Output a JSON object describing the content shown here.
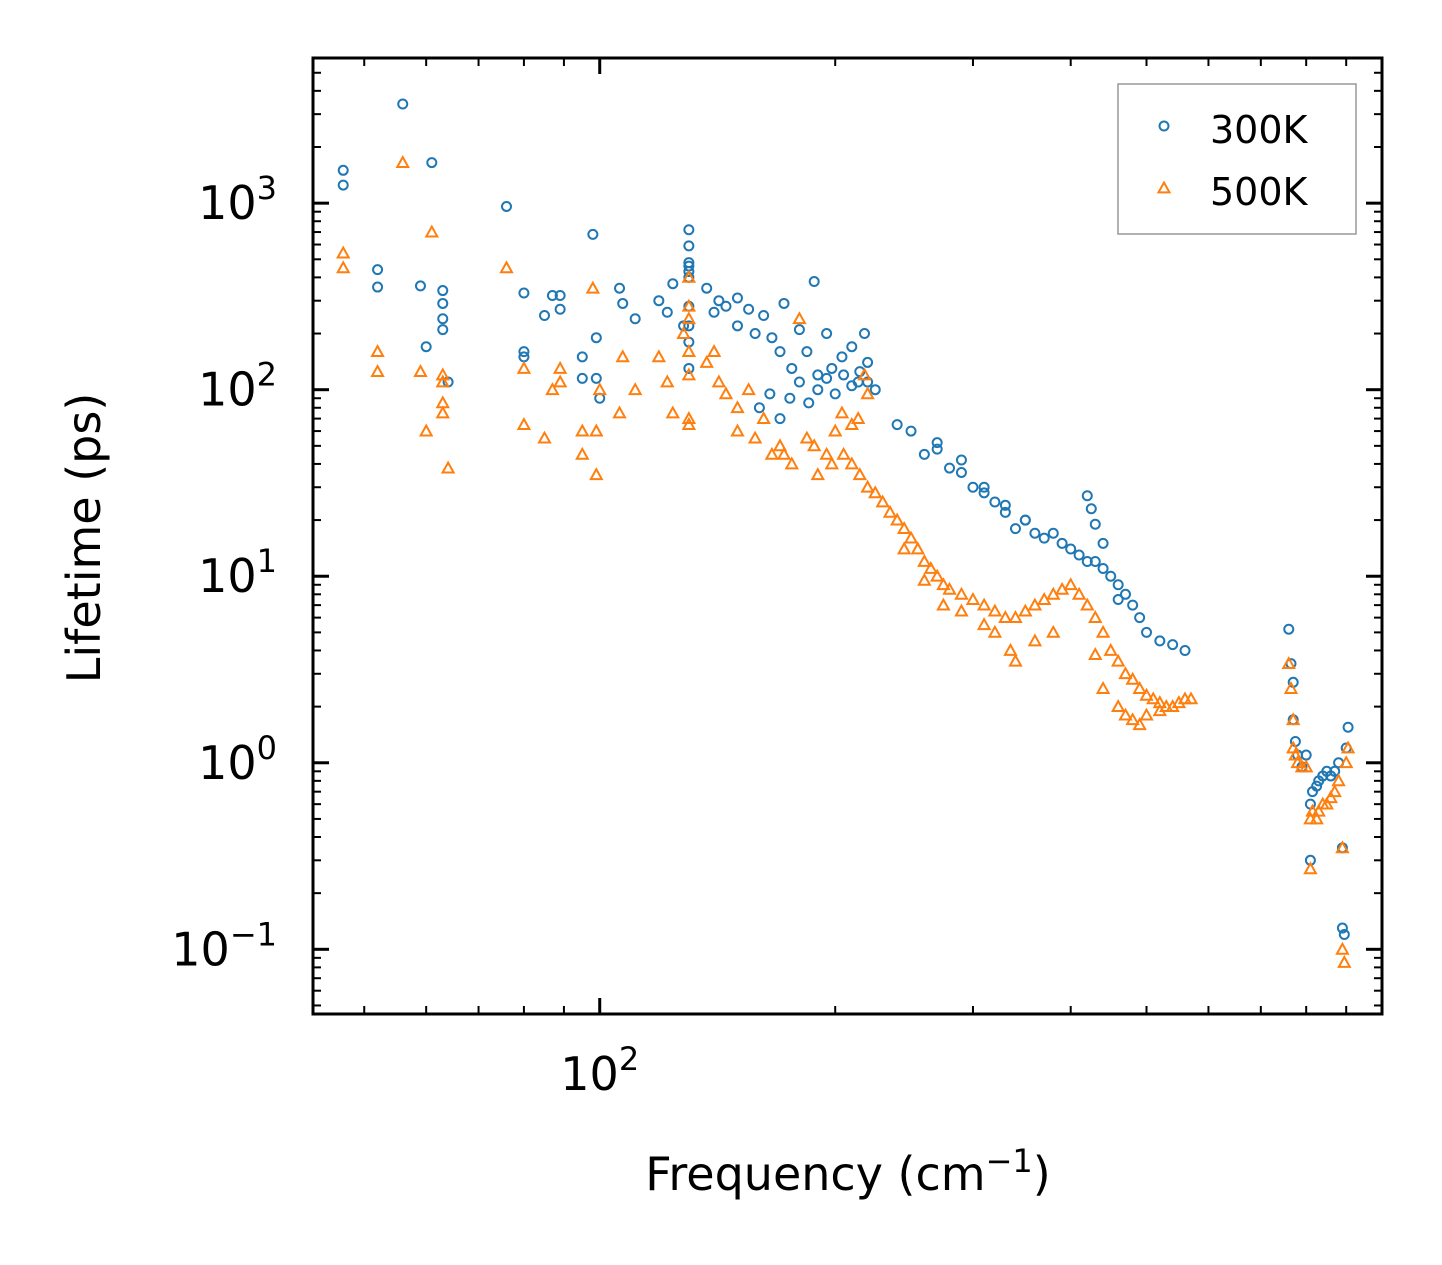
{
  "chart_data": {
    "type": "scatter",
    "xscale": "log",
    "yscale": "log",
    "xlim": [
      43,
      1000
    ],
    "ylim": [
      0.045,
      6000
    ],
    "xlabel": "Frequency (cm",
    "xlabel_exp": "−1",
    "xlabel_end": ")",
    "ylabel": "Lifetime (ps)",
    "x_ticks": [
      {
        "base": "10",
        "exp": "2",
        "value": 100
      }
    ],
    "y_ticks": [
      {
        "base": "10",
        "exp": "−1",
        "value": 0.1
      },
      {
        "base": "10",
        "exp": "0",
        "value": 1
      },
      {
        "base": "10",
        "exp": "1",
        "value": 10
      },
      {
        "base": "10",
        "exp": "2",
        "value": 100
      },
      {
        "base": "10",
        "exp": "3",
        "value": 1000
      }
    ],
    "legend": {
      "position": "top-right"
    },
    "series": [
      {
        "name": "300K",
        "marker": "circle",
        "color": "#1f77b4",
        "points": [
          [
            47,
            1500
          ],
          [
            47,
            1250
          ],
          [
            52,
            440
          ],
          [
            52,
            355
          ],
          [
            56,
            3400
          ],
          [
            59,
            360
          ],
          [
            60,
            170
          ],
          [
            61,
            1650
          ],
          [
            63,
            340
          ],
          [
            63,
            290
          ],
          [
            63,
            240
          ],
          [
            63,
            210
          ],
          [
            64,
            110
          ],
          [
            76,
            960
          ],
          [
            80,
            330
          ],
          [
            80,
            160
          ],
          [
            80,
            150
          ],
          [
            85,
            250
          ],
          [
            87,
            320
          ],
          [
            89,
            320
          ],
          [
            89,
            270
          ],
          [
            95,
            150
          ],
          [
            95,
            115
          ],
          [
            98,
            680
          ],
          [
            99,
            190
          ],
          [
            99,
            115
          ],
          [
            100,
            90
          ],
          [
            106,
            350
          ],
          [
            107,
            290
          ],
          [
            111,
            240
          ],
          [
            119,
            300
          ],
          [
            122,
            260
          ],
          [
            124,
            370
          ],
          [
            128,
            220
          ],
          [
            130,
            720
          ],
          [
            130,
            590
          ],
          [
            130,
            480
          ],
          [
            130,
            460
          ],
          [
            130,
            430
          ],
          [
            130,
            400
          ],
          [
            130,
            280
          ],
          [
            130,
            220
          ],
          [
            130,
            180
          ],
          [
            130,
            130
          ],
          [
            137,
            350
          ],
          [
            140,
            260
          ],
          [
            142,
            300
          ],
          [
            145,
            280
          ],
          [
            150,
            310
          ],
          [
            150,
            220
          ],
          [
            155,
            270
          ],
          [
            158,
            200
          ],
          [
            162,
            250
          ],
          [
            166,
            190
          ],
          [
            170,
            160
          ],
          [
            172,
            290
          ],
          [
            176,
            130
          ],
          [
            180,
            210
          ],
          [
            184,
            160
          ],
          [
            188,
            380
          ],
          [
            190,
            120
          ],
          [
            195,
            200
          ],
          [
            198,
            130
          ],
          [
            204,
            150
          ],
          [
            210,
            170
          ],
          [
            214,
            110
          ],
          [
            218,
            200
          ],
          [
            220,
            140
          ],
          [
            160,
            80
          ],
          [
            165,
            95
          ],
          [
            170,
            70
          ],
          [
            175,
            90
          ],
          [
            180,
            110
          ],
          [
            185,
            85
          ],
          [
            190,
            100
          ],
          [
            195,
            115
          ],
          [
            200,
            95
          ],
          [
            205,
            120
          ],
          [
            210,
            105
          ],
          [
            215,
            125
          ],
          [
            220,
            110
          ],
          [
            225,
            100
          ],
          [
            240,
            65
          ],
          [
            250,
            60
          ],
          [
            260,
            45
          ],
          [
            270,
            52
          ],
          [
            280,
            38
          ],
          [
            290,
            42
          ],
          [
            300,
            30
          ],
          [
            310,
            28
          ],
          [
            320,
            25
          ],
          [
            330,
            22
          ],
          [
            340,
            18
          ],
          [
            350,
            20
          ],
          [
            360,
            17
          ],
          [
            370,
            16
          ],
          [
            380,
            17
          ],
          [
            390,
            15
          ],
          [
            400,
            14
          ],
          [
            410,
            13
          ],
          [
            420,
            12
          ],
          [
            430,
            12
          ],
          [
            440,
            11
          ],
          [
            450,
            10
          ],
          [
            460,
            9
          ],
          [
            470,
            8
          ],
          [
            480,
            7
          ],
          [
            490,
            6
          ],
          [
            500,
            5
          ],
          [
            520,
            4.5
          ],
          [
            540,
            4.3
          ],
          [
            560,
            4.0
          ],
          [
            270,
            48
          ],
          [
            290,
            36
          ],
          [
            310,
            30
          ],
          [
            330,
            24
          ],
          [
            350,
            20
          ],
          [
            420,
            27
          ],
          [
            425,
            23
          ],
          [
            430,
            19
          ],
          [
            440,
            15
          ],
          [
            460,
            7.5
          ],
          [
            760,
            5.2
          ],
          [
            765,
            3.4
          ],
          [
            770,
            2.7
          ],
          [
            770,
            1.7
          ],
          [
            775,
            1.3
          ],
          [
            780,
            1.1
          ],
          [
            790,
            0.95
          ],
          [
            800,
            1.1
          ],
          [
            810,
            0.6
          ],
          [
            810,
            0.3
          ],
          [
            815,
            0.7
          ],
          [
            825,
            0.75
          ],
          [
            830,
            0.8
          ],
          [
            840,
            0.85
          ],
          [
            850,
            0.9
          ],
          [
            860,
            0.85
          ],
          [
            870,
            0.9
          ],
          [
            880,
            1.0
          ],
          [
            890,
            0.35
          ],
          [
            890,
            0.13
          ],
          [
            895,
            0.12
          ],
          [
            900,
            1.2
          ],
          [
            905,
            1.55
          ]
        ]
      },
      {
        "name": "500K",
        "marker": "triangle",
        "color": "#ff7f0e",
        "points": [
          [
            47,
            540
          ],
          [
            47,
            450
          ],
          [
            52,
            160
          ],
          [
            52,
            125
          ],
          [
            56,
            1650
          ],
          [
            59,
            125
          ],
          [
            60,
            60
          ],
          [
            61,
            700
          ],
          [
            63,
            120
          ],
          [
            63,
            110
          ],
          [
            63,
            85
          ],
          [
            63,
            75
          ],
          [
            64,
            38
          ],
          [
            76,
            450
          ],
          [
            80,
            65
          ],
          [
            80,
            130
          ],
          [
            85,
            55
          ],
          [
            87,
            100
          ],
          [
            89,
            130
          ],
          [
            89,
            110
          ],
          [
            95,
            60
          ],
          [
            95,
            45
          ],
          [
            98,
            350
          ],
          [
            99,
            60
          ],
          [
            99,
            35
          ],
          [
            100,
            100
          ],
          [
            106,
            75
          ],
          [
            107,
            150
          ],
          [
            111,
            100
          ],
          [
            119,
            150
          ],
          [
            122,
            110
          ],
          [
            124,
            75
          ],
          [
            128,
            200
          ],
          [
            130,
            400
          ],
          [
            130,
            280
          ],
          [
            130,
            240
          ],
          [
            130,
            160
          ],
          [
            130,
            120
          ],
          [
            130,
            70
          ],
          [
            130,
            65
          ],
          [
            137,
            140
          ],
          [
            140,
            160
          ],
          [
            142,
            110
          ],
          [
            145,
            95
          ],
          [
            150,
            80
          ],
          [
            150,
            60
          ],
          [
            155,
            100
          ],
          [
            158,
            55
          ],
          [
            162,
            70
          ],
          [
            166,
            45
          ],
          [
            170,
            50
          ],
          [
            172,
            45
          ],
          [
            176,
            40
          ],
          [
            180,
            240
          ],
          [
            184,
            55
          ],
          [
            188,
            50
          ],
          [
            190,
            35
          ],
          [
            195,
            45
          ],
          [
            198,
            40
          ],
          [
            204,
            75
          ],
          [
            210,
            65
          ],
          [
            214,
            70
          ],
          [
            218,
            120
          ],
          [
            220,
            95
          ],
          [
            200,
            60
          ],
          [
            205,
            45
          ],
          [
            210,
            40
          ],
          [
            215,
            35
          ],
          [
            220,
            30
          ],
          [
            225,
            28
          ],
          [
            230,
            25
          ],
          [
            235,
            22
          ],
          [
            240,
            20
          ],
          [
            245,
            18
          ],
          [
            250,
            16
          ],
          [
            255,
            14
          ],
          [
            260,
            12
          ],
          [
            265,
            11
          ],
          [
            270,
            10
          ],
          [
            275,
            9
          ],
          [
            280,
            8.5
          ],
          [
            290,
            8
          ],
          [
            300,
            7.5
          ],
          [
            310,
            7
          ],
          [
            320,
            6.5
          ],
          [
            330,
            6
          ],
          [
            340,
            6
          ],
          [
            350,
            6.5
          ],
          [
            360,
            7
          ],
          [
            370,
            7.5
          ],
          [
            380,
            8
          ],
          [
            390,
            8.5
          ],
          [
            400,
            9
          ],
          [
            410,
            8
          ],
          [
            420,
            7
          ],
          [
            430,
            6
          ],
          [
            440,
            5
          ],
          [
            450,
            4
          ],
          [
            460,
            3.5
          ],
          [
            470,
            3
          ],
          [
            480,
            2.8
          ],
          [
            490,
            2.5
          ],
          [
            500,
            2.3
          ],
          [
            510,
            2.2
          ],
          [
            520,
            2.1
          ],
          [
            530,
            2.0
          ],
          [
            540,
            2.0
          ],
          [
            550,
            2.1
          ],
          [
            560,
            2.2
          ],
          [
            570,
            2.2
          ],
          [
            245,
            14
          ],
          [
            260,
            9.5
          ],
          [
            275,
            7
          ],
          [
            290,
            6.5
          ],
          [
            310,
            5.5
          ],
          [
            320,
            5
          ],
          [
            335,
            4
          ],
          [
            340,
            3.5
          ],
          [
            360,
            4.5
          ],
          [
            380,
            5
          ],
          [
            430,
            3.8
          ],
          [
            440,
            2.5
          ],
          [
            460,
            2.0
          ],
          [
            470,
            1.8
          ],
          [
            480,
            1.7
          ],
          [
            490,
            1.6
          ],
          [
            500,
            1.8
          ],
          [
            520,
            1.9
          ],
          [
            760,
            3.4
          ],
          [
            765,
            2.5
          ],
          [
            770,
            1.7
          ],
          [
            770,
            1.2
          ],
          [
            775,
            1.1
          ],
          [
            780,
            1.0
          ],
          [
            790,
            0.95
          ],
          [
            800,
            0.95
          ],
          [
            810,
            0.5
          ],
          [
            810,
            0.27
          ],
          [
            815,
            0.55
          ],
          [
            825,
            0.5
          ],
          [
            830,
            0.55
          ],
          [
            840,
            0.6
          ],
          [
            850,
            0.6
          ],
          [
            860,
            0.65
          ],
          [
            870,
            0.7
          ],
          [
            880,
            0.8
          ],
          [
            890,
            0.35
          ],
          [
            890,
            0.1
          ],
          [
            895,
            0.085
          ],
          [
            900,
            1.0
          ],
          [
            905,
            1.2
          ]
        ]
      }
    ]
  }
}
